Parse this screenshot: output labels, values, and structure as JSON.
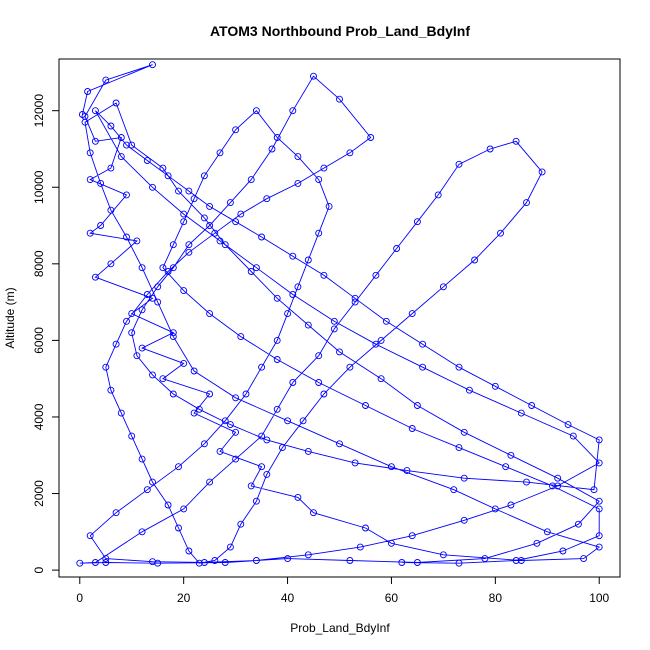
{
  "chart_data": {
    "type": "scatter",
    "title": "ATOM3 Northbound Prob_Land_BdyInf",
    "xlabel": "Prob_Land_BdyInf",
    "ylabel": "Altitude (m)",
    "xlim": [
      -4,
      104
    ],
    "ylim": [
      -180,
      13350
    ],
    "x_ticks": [
      0,
      20,
      40,
      60,
      80,
      100
    ],
    "y_ticks": [
      0,
      2000,
      4000,
      6000,
      8000,
      10000,
      12000
    ],
    "x_tick_labels": [
      "0",
      "20",
      "40",
      "60",
      "80",
      "100"
    ],
    "y_tick_labels": [
      "0",
      "2000",
      "4000",
      "6000",
      "8000",
      "10000",
      "12000"
    ],
    "grid": false,
    "legend": "none",
    "series": [
      {
        "color": "#0000ff",
        "marker": "open-circle",
        "connected": true,
        "points": [
          [
            0.5,
            11900
          ],
          [
            1.5,
            12500
          ],
          [
            14,
            13200
          ],
          [
            5,
            12800
          ],
          [
            1,
            11850
          ],
          [
            3,
            11200
          ],
          [
            8,
            11300
          ],
          [
            6,
            10500
          ],
          [
            2,
            10200
          ],
          [
            9,
            9800
          ],
          [
            4,
            9000
          ],
          [
            2,
            8800
          ],
          [
            11,
            8600
          ],
          [
            6,
            8000
          ],
          [
            3,
            7650
          ],
          [
            14,
            7100
          ],
          [
            10,
            6700
          ],
          [
            18,
            6200
          ],
          [
            12,
            5800
          ],
          [
            20,
            5400
          ],
          [
            16,
            5000
          ],
          [
            25,
            4600
          ],
          [
            22,
            4100
          ],
          [
            30,
            3600
          ],
          [
            27,
            3100
          ],
          [
            35,
            2700
          ],
          [
            33,
            2200
          ],
          [
            42,
            1900
          ],
          [
            45,
            1500
          ],
          [
            55,
            1100
          ],
          [
            60,
            700
          ],
          [
            70,
            400
          ],
          [
            85,
            250
          ],
          [
            97,
            300
          ],
          [
            100,
            600
          ],
          [
            90,
            1000
          ],
          [
            80,
            1600
          ],
          [
            72,
            2100
          ],
          [
            60,
            2700
          ],
          [
            50,
            3300
          ],
          [
            40,
            3900
          ],
          [
            30,
            4500
          ],
          [
            22,
            5200
          ],
          [
            18,
            6100
          ],
          [
            15,
            7000
          ],
          [
            12,
            7900
          ],
          [
            9,
            8700
          ],
          [
            6,
            9400
          ],
          [
            4,
            10100
          ],
          [
            2,
            10900
          ],
          [
            1,
            11700
          ],
          [
            7,
            12200
          ],
          [
            10,
            11100
          ],
          [
            16,
            10500
          ],
          [
            19,
            9900
          ],
          [
            24,
            9200
          ],
          [
            28,
            8500
          ],
          [
            33,
            7800
          ],
          [
            38,
            7100
          ],
          [
            44,
            6400
          ],
          [
            50,
            5700
          ],
          [
            58,
            5000
          ],
          [
            65,
            4300
          ],
          [
            74,
            3600
          ],
          [
            83,
            3000
          ],
          [
            92,
            2400
          ],
          [
            100,
            1800
          ],
          [
            96,
            1200
          ],
          [
            88,
            700
          ],
          [
            78,
            300
          ],
          [
            65,
            200
          ],
          [
            52,
            250
          ],
          [
            40,
            300
          ],
          [
            28,
            200
          ],
          [
            15,
            180
          ],
          [
            5,
            200
          ],
          [
            0,
            180
          ],
          [
            3,
            200
          ],
          [
            12,
            1000
          ],
          [
            20,
            1600
          ],
          [
            25,
            2300
          ],
          [
            30,
            2900
          ],
          [
            35,
            3500
          ],
          [
            38,
            4200
          ],
          [
            41,
            4900
          ],
          [
            46,
            5600
          ],
          [
            49,
            6300
          ],
          [
            53,
            7000
          ],
          [
            57,
            7700
          ],
          [
            61,
            8400
          ],
          [
            65,
            9100
          ],
          [
            69,
            9800
          ],
          [
            73,
            10600
          ],
          [
            79,
            11000
          ],
          [
            84,
            11200
          ],
          [
            89,
            10400
          ],
          [
            86,
            9600
          ],
          [
            81,
            8800
          ],
          [
            76,
            8100
          ],
          [
            70,
            7400
          ],
          [
            64,
            6700
          ],
          [
            58,
            6000
          ],
          [
            52,
            5300
          ],
          [
            47,
            4600
          ],
          [
            43,
            3900
          ],
          [
            39,
            3200
          ],
          [
            36,
            2500
          ],
          [
            34,
            1800
          ],
          [
            31,
            1200
          ],
          [
            29,
            600
          ],
          [
            26,
            250
          ],
          [
            23,
            180
          ],
          [
            21,
            500
          ],
          [
            19,
            1100
          ],
          [
            17,
            1700
          ],
          [
            14,
            2300
          ],
          [
            12,
            2900
          ],
          [
            10,
            3500
          ],
          [
            8,
            4100
          ],
          [
            6,
            4700
          ],
          [
            5,
            5300
          ],
          [
            7,
            5900
          ],
          [
            9,
            6500
          ],
          [
            13,
            7200
          ],
          [
            17,
            7800
          ],
          [
            21,
            8300
          ],
          [
            26,
            8800
          ],
          [
            31,
            9300
          ],
          [
            36,
            9700
          ],
          [
            42,
            10100
          ],
          [
            47,
            10500
          ],
          [
            52,
            10900
          ],
          [
            56,
            11300
          ],
          [
            50,
            12300
          ],
          [
            45,
            12900
          ],
          [
            41,
            12000
          ],
          [
            37,
            11000
          ],
          [
            33,
            10200
          ],
          [
            29,
            9600
          ],
          [
            25,
            9000
          ],
          [
            21,
            8500
          ],
          [
            18,
            7900
          ],
          [
            15,
            7400
          ],
          [
            12,
            6800
          ],
          [
            10,
            6200
          ],
          [
            11,
            5600
          ],
          [
            14,
            5100
          ],
          [
            18,
            4600
          ],
          [
            23,
            4200
          ],
          [
            29,
            3800
          ],
          [
            36,
            3400
          ],
          [
            44,
            3100
          ],
          [
            53,
            2800
          ],
          [
            63,
            2600
          ],
          [
            74,
            2400
          ],
          [
            86,
            2300
          ],
          [
            99,
            2100
          ],
          [
            100,
            3400
          ],
          [
            94,
            3800
          ],
          [
            87,
            4300
          ],
          [
            80,
            4800
          ],
          [
            73,
            5300
          ],
          [
            66,
            5900
          ],
          [
            59,
            6500
          ],
          [
            53,
            7100
          ],
          [
            47,
            7700
          ],
          [
            41,
            8200
          ],
          [
            35,
            8700
          ],
          [
            30,
            9100
          ],
          [
            25,
            9500
          ],
          [
            21,
            9900
          ],
          [
            17,
            10300
          ],
          [
            13,
            10700
          ],
          [
            9,
            11100
          ],
          [
            6,
            11600
          ],
          [
            3,
            12000
          ],
          [
            8,
            10800
          ],
          [
            14,
            10000
          ],
          [
            20,
            9300
          ],
          [
            27,
            8600
          ],
          [
            34,
            7900
          ],
          [
            41,
            7200
          ],
          [
            49,
            6500
          ],
          [
            57,
            5900
          ],
          [
            66,
            5300
          ],
          [
            75,
            4700
          ],
          [
            85,
            4100
          ],
          [
            95,
            3500
          ],
          [
            100,
            2800
          ],
          [
            92,
            2200
          ],
          [
            83,
            1700
          ],
          [
            74,
            1300
          ],
          [
            64,
            900
          ],
          [
            54,
            600
          ],
          [
            44,
            400
          ],
          [
            34,
            250
          ],
          [
            24,
            200
          ],
          [
            14,
            220
          ],
          [
            5,
            300
          ],
          [
            2,
            900
          ],
          [
            7,
            1500
          ],
          [
            13,
            2100
          ],
          [
            19,
            2700
          ],
          [
            24,
            3300
          ],
          [
            28,
            3900
          ],
          [
            32,
            4600
          ],
          [
            35,
            5300
          ],
          [
            38,
            6000
          ],
          [
            40,
            6700
          ],
          [
            42,
            7400
          ],
          [
            44,
            8100
          ],
          [
            46,
            8800
          ],
          [
            48,
            9500
          ],
          [
            46,
            10200
          ],
          [
            42,
            10800
          ],
          [
            38,
            11300
          ],
          [
            34,
            12000
          ],
          [
            30,
            11500
          ],
          [
            27,
            10900
          ],
          [
            24,
            10300
          ],
          [
            22,
            9700
          ],
          [
            20,
            9100
          ],
          [
            18,
            8500
          ],
          [
            16,
            7900
          ],
          [
            20,
            7300
          ],
          [
            25,
            6700
          ],
          [
            31,
            6100
          ],
          [
            38,
            5500
          ],
          [
            46,
            4900
          ],
          [
            55,
            4300
          ],
          [
            64,
            3700
          ],
          [
            73,
            3200
          ],
          [
            82,
            2700
          ],
          [
            91,
            2200
          ],
          [
            100,
            1600
          ],
          [
            100,
            900
          ],
          [
            93,
            500
          ],
          [
            84,
            250
          ],
          [
            73,
            180
          ],
          [
            62,
            200
          ]
        ]
      }
    ]
  }
}
